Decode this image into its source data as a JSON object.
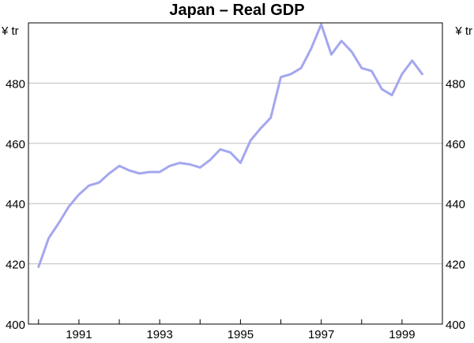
{
  "chart_data": {
    "type": "line",
    "title": "Japan –  Real GDP",
    "unit_left": "¥ tr",
    "unit_right": "¥ tr",
    "ylim": [
      400,
      500
    ],
    "yticks": [
      400,
      420,
      440,
      460,
      480
    ],
    "xlim": [
      1989.75,
      2000.0
    ],
    "xtick_labels": [
      "1991",
      "1993",
      "1995",
      "1997",
      "1999"
    ],
    "xtick_label_positions": [
      1991.0,
      1993.0,
      1995.0,
      1997.0,
      1999.0
    ],
    "grid": true,
    "legend": "none",
    "line_color": "#a4a7ee",
    "series": [
      {
        "x": [
          1990.0,
          1990.25,
          1990.5,
          1990.75,
          1991.0,
          1991.25,
          1991.5,
          1991.75,
          1992.0,
          1992.25,
          1992.5,
          1992.75,
          1993.0,
          1993.25,
          1993.5,
          1993.75,
          1994.0,
          1994.25,
          1994.5,
          1994.75,
          1995.0,
          1995.25,
          1995.5,
          1995.75,
          1996.0,
          1996.25,
          1996.5,
          1996.75,
          1997.0,
          1997.25,
          1997.5,
          1997.75,
          1998.0,
          1998.25,
          1998.5,
          1998.75,
          1999.0,
          1999.25,
          1999.5
        ],
        "values": [
          419,
          428.5,
          433.5,
          439,
          443,
          446,
          447,
          450,
          452.5,
          451,
          450,
          450.5,
          450.5,
          452.5,
          453.5,
          453,
          452,
          454.5,
          458,
          457,
          453.5,
          461,
          465,
          468.5,
          482,
          483,
          485,
          491.5,
          499.5,
          489.5,
          494,
          490.5,
          485,
          484,
          478,
          476,
          483,
          487.5,
          483
        ]
      }
    ]
  }
}
